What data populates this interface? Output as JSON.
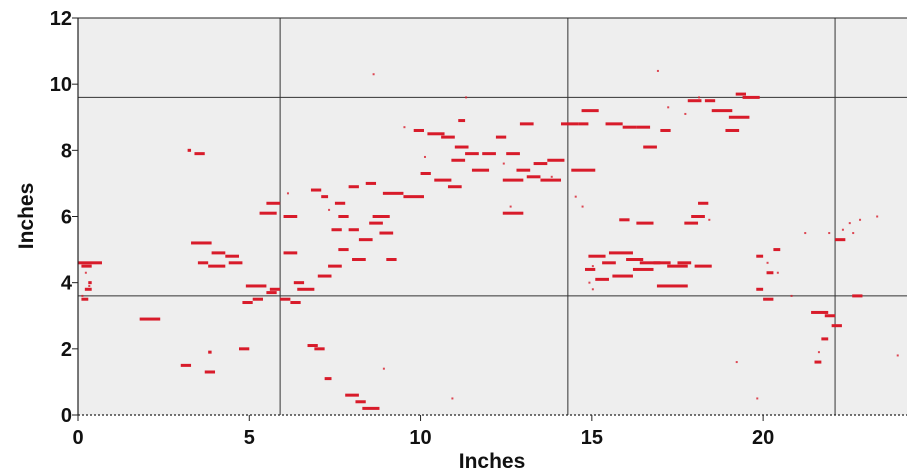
{
  "chart_data": {
    "type": "scatter",
    "title": "",
    "xlabel": "Inches",
    "ylabel": "Inches",
    "xlim": [
      0,
      24.2
    ],
    "ylim": [
      0,
      12
    ],
    "x_ticks": [
      0,
      5,
      10,
      15,
      20
    ],
    "y_ticks": [
      0,
      2,
      4,
      6,
      8,
      10,
      12
    ],
    "gridlines_x": [
      5.9,
      14.3,
      22.1
    ],
    "gridlines_y": [
      3.6,
      9.6
    ],
    "colors": {
      "plot_background": "#eeeeee",
      "marks": "#d81b2a",
      "gridlines": "#333333"
    },
    "legend": "none",
    "segments": [
      [
        0.0,
        4.6,
        0.7
      ],
      [
        0.1,
        4.5,
        0.3
      ],
      [
        0.1,
        3.5,
        0.2
      ],
      [
        0.2,
        3.8,
        0.2
      ],
      [
        0.3,
        4.0,
        0.1
      ],
      [
        1.8,
        2.9,
        0.6
      ],
      [
        3.0,
        1.5,
        0.3
      ],
      [
        3.2,
        8.0,
        0.1
      ],
      [
        3.3,
        5.2,
        0.6
      ],
      [
        3.4,
        7.9,
        0.3
      ],
      [
        3.5,
        4.6,
        0.3
      ],
      [
        3.7,
        1.3,
        0.3
      ],
      [
        3.8,
        1.9,
        0.1
      ],
      [
        3.8,
        4.5,
        0.5
      ],
      [
        3.9,
        4.9,
        0.4
      ],
      [
        4.3,
        4.8,
        0.4
      ],
      [
        4.4,
        4.6,
        0.4
      ],
      [
        4.7,
        2.0,
        0.3
      ],
      [
        4.8,
        3.4,
        0.3
      ],
      [
        4.9,
        3.9,
        0.6
      ],
      [
        5.1,
        3.5,
        0.3
      ],
      [
        5.3,
        6.1,
        0.5
      ],
      [
        5.5,
        3.7,
        0.3
      ],
      [
        5.5,
        6.4,
        0.4
      ],
      [
        5.6,
        3.8,
        0.3
      ],
      [
        5.9,
        3.5,
        0.3
      ],
      [
        6.0,
        4.9,
        0.4
      ],
      [
        6.0,
        6.0,
        0.4
      ],
      [
        6.2,
        3.4,
        0.3
      ],
      [
        6.3,
        4.0,
        0.3
      ],
      [
        6.4,
        3.8,
        0.5
      ],
      [
        6.7,
        2.1,
        0.3
      ],
      [
        6.8,
        6.8,
        0.3
      ],
      [
        6.9,
        2.0,
        0.3
      ],
      [
        7.0,
        4.2,
        0.4
      ],
      [
        7.1,
        6.6,
        0.2
      ],
      [
        7.2,
        1.1,
        0.2
      ],
      [
        7.3,
        4.5,
        0.4
      ],
      [
        7.4,
        5.6,
        0.3
      ],
      [
        7.5,
        6.4,
        0.3
      ],
      [
        7.6,
        5.0,
        0.3
      ],
      [
        7.6,
        6.0,
        0.3
      ],
      [
        7.8,
        0.6,
        0.4
      ],
      [
        7.9,
        5.6,
        0.3
      ],
      [
        7.9,
        6.9,
        0.3
      ],
      [
        8.0,
        4.7,
        0.4
      ],
      [
        8.1,
        0.4,
        0.3
      ],
      [
        8.2,
        5.3,
        0.4
      ],
      [
        8.3,
        0.2,
        0.5
      ],
      [
        8.4,
        7.0,
        0.3
      ],
      [
        8.5,
        5.8,
        0.4
      ],
      [
        8.6,
        6.0,
        0.5
      ],
      [
        8.8,
        5.5,
        0.4
      ],
      [
        8.9,
        6.7,
        0.6
      ],
      [
        9.0,
        4.7,
        0.3
      ],
      [
        9.5,
        6.6,
        0.6
      ],
      [
        9.8,
        8.6,
        0.3
      ],
      [
        10.0,
        7.3,
        0.3
      ],
      [
        10.2,
        8.5,
        0.5
      ],
      [
        10.4,
        7.1,
        0.5
      ],
      [
        10.6,
        8.4,
        0.4
      ],
      [
        10.8,
        6.9,
        0.4
      ],
      [
        10.9,
        7.7,
        0.4
      ],
      [
        11.0,
        8.1,
        0.4
      ],
      [
        11.1,
        8.9,
        0.2
      ],
      [
        11.3,
        7.9,
        0.4
      ],
      [
        11.5,
        7.4,
        0.5
      ],
      [
        11.8,
        7.9,
        0.4
      ],
      [
        12.2,
        8.4,
        0.3
      ],
      [
        12.4,
        6.1,
        0.6
      ],
      [
        12.4,
        7.1,
        0.6
      ],
      [
        12.5,
        7.9,
        0.4
      ],
      [
        12.8,
        7.4,
        0.4
      ],
      [
        12.9,
        8.8,
        0.4
      ],
      [
        13.1,
        7.2,
        0.4
      ],
      [
        13.3,
        7.6,
        0.4
      ],
      [
        13.5,
        7.1,
        0.6
      ],
      [
        13.7,
        7.7,
        0.5
      ],
      [
        14.1,
        8.8,
        0.5
      ],
      [
        14.4,
        7.4,
        0.7
      ],
      [
        14.6,
        8.8,
        0.3
      ],
      [
        14.7,
        9.2,
        0.5
      ],
      [
        14.8,
        4.4,
        0.3
      ],
      [
        14.9,
        4.8,
        0.5
      ],
      [
        15.1,
        4.1,
        0.4
      ],
      [
        15.3,
        4.6,
        0.4
      ],
      [
        15.4,
        8.8,
        0.5
      ],
      [
        15.5,
        4.9,
        0.7
      ],
      [
        15.6,
        4.2,
        0.6
      ],
      [
        15.8,
        5.9,
        0.3
      ],
      [
        15.9,
        8.7,
        0.4
      ],
      [
        16.0,
        4.7,
        0.5
      ],
      [
        16.2,
        4.4,
        0.6
      ],
      [
        16.3,
        5.8,
        0.5
      ],
      [
        16.3,
        8.7,
        0.4
      ],
      [
        16.4,
        4.6,
        0.6
      ],
      [
        16.5,
        8.1,
        0.4
      ],
      [
        16.8,
        4.6,
        0.5
      ],
      [
        16.9,
        3.9,
        0.9
      ],
      [
        17.0,
        8.6,
        0.3
      ],
      [
        17.2,
        4.5,
        0.6
      ],
      [
        17.5,
        4.6,
        0.4
      ],
      [
        17.7,
        5.8,
        0.4
      ],
      [
        17.8,
        9.5,
        0.4
      ],
      [
        17.9,
        6.0,
        0.4
      ],
      [
        18.0,
        4.5,
        0.5
      ],
      [
        18.1,
        6.4,
        0.3
      ],
      [
        18.3,
        9.5,
        0.3
      ],
      [
        18.5,
        9.2,
        0.6
      ],
      [
        18.9,
        8.6,
        0.4
      ],
      [
        19.0,
        9.0,
        0.6
      ],
      [
        19.2,
        9.7,
        0.3
      ],
      [
        19.4,
        9.6,
        0.5
      ],
      [
        19.8,
        3.8,
        0.2
      ],
      [
        19.8,
        4.8,
        0.2
      ],
      [
        20.0,
        3.5,
        0.3
      ],
      [
        20.1,
        4.3,
        0.2
      ],
      [
        20.3,
        5.0,
        0.2
      ],
      [
        21.4,
        3.1,
        0.5
      ],
      [
        21.5,
        1.6,
        0.2
      ],
      [
        21.7,
        2.3,
        0.2
      ],
      [
        21.8,
        3.0,
        0.3
      ],
      [
        22.0,
        2.7,
        0.3
      ],
      [
        22.1,
        5.3,
        0.3
      ],
      [
        22.6,
        3.6,
        0.3
      ]
    ],
    "specks": [
      [
        0.1,
        3.6
      ],
      [
        0.3,
        3.9
      ],
      [
        0.2,
        4.3
      ],
      [
        8.6,
        10.3
      ],
      [
        9.5,
        8.7
      ],
      [
        10.1,
        7.8
      ],
      [
        11.3,
        9.6
      ],
      [
        12.4,
        7.6
      ],
      [
        12.6,
        6.3
      ],
      [
        13.8,
        7.2
      ],
      [
        14.5,
        6.6
      ],
      [
        14.7,
        6.3
      ],
      [
        15.0,
        3.8
      ],
      [
        15.0,
        4.5
      ],
      [
        16.9,
        10.4
      ],
      [
        17.2,
        9.3
      ],
      [
        17.7,
        9.1
      ],
      [
        18.1,
        9.6
      ],
      [
        18.4,
        5.9
      ],
      [
        19.2,
        1.6
      ],
      [
        19.8,
        0.5
      ],
      [
        20.1,
        4.6
      ],
      [
        20.4,
        4.3
      ],
      [
        20.8,
        3.6
      ],
      [
        21.2,
        5.5
      ],
      [
        21.6,
        1.9
      ],
      [
        22.3,
        5.6
      ],
      [
        22.5,
        5.8
      ],
      [
        22.6,
        5.5
      ],
      [
        22.8,
        5.9
      ],
      [
        23.3,
        6.0
      ],
      [
        23.9,
        1.8
      ],
      [
        21.9,
        5.5
      ],
      [
        10.9,
        0.5
      ],
      [
        8.9,
        1.4
      ],
      [
        7.3,
        6.2
      ],
      [
        6.1,
        6.7
      ],
      [
        14.9,
        4.0
      ]
    ]
  }
}
